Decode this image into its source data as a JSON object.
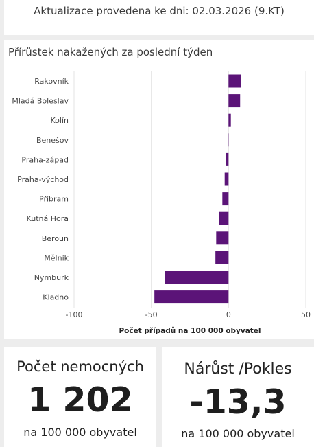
{
  "header": {
    "update_text": "Aktualizace provedena ke dni: 02.03.2026 (9.KT)"
  },
  "chart_data": {
    "type": "bar",
    "orientation": "horizontal",
    "title": "Přírůstek nakažených za poslední týden",
    "xlabel": "Počet případů na 100 000 obyvatel",
    "ylabel": "",
    "xlim": [
      -100,
      50
    ],
    "xticks": [
      "-100",
      "-50",
      "0",
      "50"
    ],
    "grid": true,
    "legend": "none",
    "bar_color": "#5b1478",
    "categories": [
      "Rakovník",
      "Mladá Boleslav",
      "Kolín",
      "Benešov",
      "Praha-západ",
      "Praha-východ",
      "Příbram",
      "Kutná Hora",
      "Beroun",
      "Mělník",
      "Nymburk",
      "Kladno"
    ],
    "values": [
      8,
      7.5,
      1.5,
      -0.5,
      -1.5,
      -2.5,
      -4,
      -6,
      -8,
      -8.5,
      -41,
      -48
    ]
  },
  "kpi_count": {
    "title": "Počet nemocných",
    "value": "1 202",
    "unit": "na 100 000 obyvatel"
  },
  "kpi_change": {
    "title": "Nárůst /Pokles",
    "value": "-13,3",
    "unit": "na 100 000 obyvatel"
  }
}
